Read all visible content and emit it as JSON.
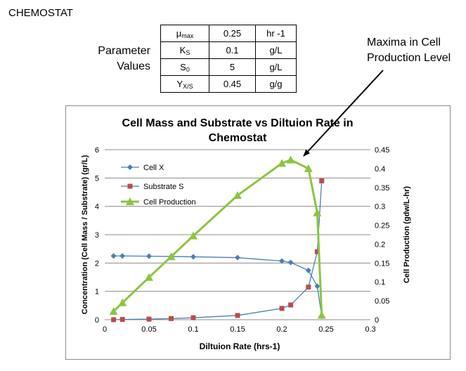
{
  "page": {
    "title": "CHEMOSTAT"
  },
  "parameters": {
    "label_line1": "Parameter",
    "label_line2": "Values",
    "rows": [
      {
        "symbol": "μ",
        "sub": "max",
        "value": "0.25",
        "unit": "hr -1"
      },
      {
        "symbol": "K",
        "sub": "S",
        "value": "0.1",
        "unit": "g/L"
      },
      {
        "symbol": "S",
        "sub": "0",
        "value": "5",
        "unit": "g/L"
      },
      {
        "symbol": "Y",
        "sub": "X/S",
        "value": "0.45",
        "unit": "g/g"
      }
    ]
  },
  "annotation": {
    "line1": "Maxima in Cell",
    "line2": "Production Level"
  },
  "chart_data": {
    "type": "line",
    "title_line1": "Cell Mass and Substrate vs Diltuion Rate in",
    "title_line2": "Chemostat",
    "xlabel": "Diltuion Rate (hrs-1)",
    "ylabel": "Concentration (Cell Mass / Substrate) (gr/L)",
    "y2label": "Cell Production (gdw/L-hr)",
    "xlim": [
      0,
      0.3
    ],
    "ylim": [
      0,
      6
    ],
    "y2lim": [
      0,
      0.45
    ],
    "xticks": [
      "0",
      "0.05",
      "0.1",
      "0.15",
      "0.2",
      "0.25",
      "0.3"
    ],
    "yticks": [
      "0",
      "1",
      "2",
      "3",
      "4",
      "5",
      "6"
    ],
    "y2ticks": [
      "0",
      "0.05",
      "0.1",
      "0.15",
      "0.2",
      "0.25",
      "0.3",
      "0.35",
      "0.4",
      "0.45"
    ],
    "grid": "horizontal",
    "legend_position": "top-left inside plot",
    "series": [
      {
        "name": "Cell X",
        "axis": "left",
        "color": "#4a7ebb",
        "marker": "diamond",
        "points": [
          [
            0.01,
            2.25
          ],
          [
            0.02,
            2.25
          ],
          [
            0.05,
            2.24
          ],
          [
            0.075,
            2.23
          ],
          [
            0.1,
            2.22
          ],
          [
            0.15,
            2.19
          ],
          [
            0.2,
            2.07
          ],
          [
            0.21,
            2.02
          ],
          [
            0.23,
            1.74
          ],
          [
            0.24,
            1.18
          ],
          [
            0.245,
            0.12
          ]
        ]
      },
      {
        "name": "Substrate S",
        "axis": "left",
        "color": "#be4b48",
        "line_color": "#4a7ebb",
        "marker": "square",
        "points": [
          [
            0.01,
            0.0
          ],
          [
            0.02,
            0.01
          ],
          [
            0.05,
            0.02
          ],
          [
            0.075,
            0.04
          ],
          [
            0.1,
            0.07
          ],
          [
            0.15,
            0.15
          ],
          [
            0.2,
            0.4
          ],
          [
            0.21,
            0.52
          ],
          [
            0.23,
            1.15
          ],
          [
            0.24,
            2.4
          ],
          [
            0.245,
            4.9
          ]
        ]
      },
      {
        "name": "Cell Production",
        "axis": "right",
        "color": "#8cc540",
        "marker": "triangle",
        "points": [
          [
            0.01,
            0.022
          ],
          [
            0.02,
            0.045
          ],
          [
            0.05,
            0.112
          ],
          [
            0.075,
            0.167
          ],
          [
            0.1,
            0.222
          ],
          [
            0.15,
            0.329
          ],
          [
            0.2,
            0.414
          ],
          [
            0.21,
            0.423
          ],
          [
            0.23,
            0.4
          ],
          [
            0.24,
            0.283
          ],
          [
            0.245,
            0.012
          ]
        ]
      }
    ]
  }
}
